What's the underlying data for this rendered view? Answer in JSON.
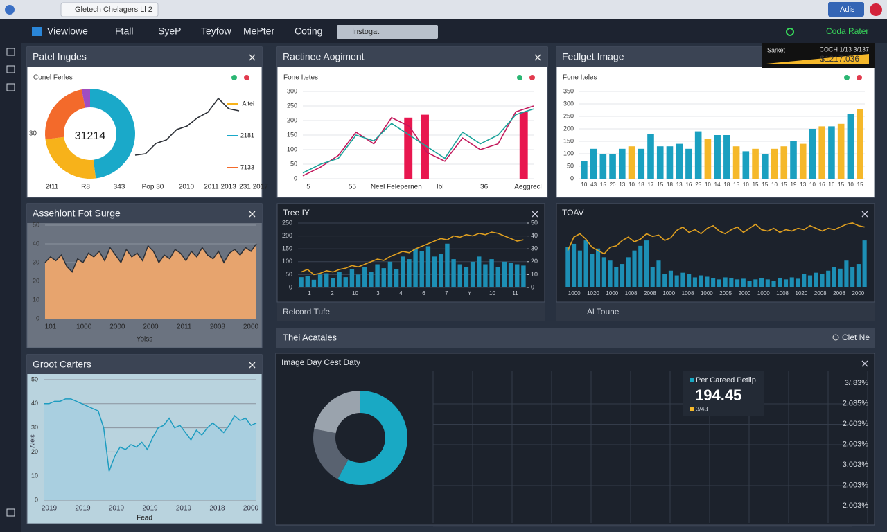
{
  "browser": {
    "tab_title": "Gletech Chelagers Ll 2",
    "account": "Adis"
  },
  "toolbar": {
    "items": [
      "Viewlowe",
      "Ftall",
      "SyeP",
      "Teyfow",
      "MePter",
      "Coting"
    ],
    "search": "Instogat",
    "status": "Coda Rater"
  },
  "ticker": {
    "label": "Sarket",
    "code": "COCH 1/13 3/137",
    "value": "$1217.036"
  },
  "panels": [
    {
      "title": "Patel Ingdes",
      "subtitle": "Conel Ferles",
      "x_labels": [
        "2t11",
        "R8",
        "343",
        "Pop 30",
        "2010",
        "2011 2013",
        "231 2017"
      ],
      "charts": [
        {
          "type": "donut",
          "center_label": "31214",
          "side_label": "30",
          "values": [
            48,
            25,
            24,
            3
          ],
          "colors": [
            "#1aa9c9",
            "#f7b21a",
            "#f36a2b",
            "#a04dc0"
          ]
        },
        {
          "type": "line",
          "ylim": [
            0,
            100
          ],
          "series": [
            {
              "color": "#2b2f36",
              "values": [
                8,
                10,
                25,
                30,
                45,
                50,
                62,
                70,
                90,
                75,
                72
              ]
            }
          ],
          "legend": [
            {
              "label": "Aitei",
              "color": "#f7b21a"
            },
            {
              "label": "2181",
              "color": "#1aa9c9"
            },
            {
              "label": "7133",
              "color": "#f36a2b"
            }
          ]
        }
      ]
    },
    {
      "title": "Ractinee Aogiment",
      "subtitle": "Fone Itetes",
      "x_labels": [
        "5",
        "55",
        "Neel Felepernen",
        "Ibl",
        "36",
        "Aeggrecl"
      ],
      "charts": [
        {
          "type": "line",
          "ylim": [
            0,
            300
          ],
          "yticks": [
            0,
            50,
            100,
            150,
            200,
            250,
            300
          ],
          "grid": true,
          "series": [
            {
              "kind": "bar",
              "color": "#e8174f",
              "values": [
                null,
                null,
                null,
                null,
                null,
                null,
                210,
                220,
                null,
                null,
                null,
                null,
                null,
                230
              ]
            },
            {
              "color": "#c2185b",
              "values": [
                10,
                40,
                80,
                160,
                120,
                210,
                180,
                90,
                60,
                140,
                100,
                120,
                230,
                250
              ]
            },
            {
              "color": "#1aa39a",
              "values": [
                20,
                50,
                70,
                150,
                130,
                190,
                150,
                110,
                70,
                160,
                120,
                150,
                220,
                240
              ]
            }
          ]
        }
      ]
    },
    {
      "title": "Fedlget Image",
      "subtitle": "Fone Iteles",
      "charts": [
        {
          "type": "bar",
          "ylim": [
            0,
            350
          ],
          "yticks": [
            0,
            50,
            100,
            150,
            200,
            250,
            300,
            350
          ],
          "grid": true,
          "categories": [
            "10",
            "43",
            "15",
            "20",
            "13",
            "10",
            "18",
            "17",
            "15",
            "18",
            "13",
            "16",
            "25",
            "10",
            "14",
            "18",
            "15",
            "10",
            "15",
            "15",
            "10",
            "15",
            "19",
            "13",
            "10",
            "16",
            "16",
            "15",
            "10",
            "15"
          ],
          "series": [
            {
              "values": [
                70,
                120,
                100,
                100,
                120,
                130,
                120,
                180,
                130,
                130,
                140,
                120,
                190,
                160,
                175,
                175,
                130,
                110,
                120,
                100,
                120,
                130,
                150,
                140,
                200,
                210,
                210,
                220,
                260,
                280
              ],
              "colors": [
                "#1aa0c0",
                "#1aa0c0",
                "#1aa0c0",
                "#1aa0c0",
                "#1aa0c0",
                "#f5b82a",
                "#1aa0c0",
                "#1aa0c0",
                "#1aa0c0",
                "#1aa0c0",
                "#1aa0c0",
                "#1aa0c0",
                "#1aa0c0",
                "#f5b82a",
                "#1aa0c0",
                "#1aa0c0",
                "#f5b82a",
                "#1aa0c0",
                "#f5b82a",
                "#1aa0c0",
                "#f5b82a",
                "#f5b82a",
                "#1aa0c0",
                "#f5b82a",
                "#1aa0c0",
                "#f5b82a",
                "#1aa0c0",
                "#f5b82a",
                "#1aa0c0",
                "#f5b82a"
              ]
            }
          ]
        }
      ]
    },
    {
      "title": "Assehlont Fot Surge",
      "x_labels": [
        "101",
        "1000",
        "2000",
        "2000",
        "2011",
        "2008",
        "2000"
      ],
      "x_title": "Yoiss",
      "charts": [
        {
          "type": "area",
          "ylim": [
            0,
            50
          ],
          "yticks": [
            0,
            10,
            20,
            30,
            40,
            50
          ],
          "grid": true,
          "series": [
            {
              "color": "#e7a46e",
              "line_color": "#2b2f36",
              "values": [
                30,
                33,
                31,
                34,
                28,
                25,
                32,
                30,
                35,
                33,
                36,
                31,
                38,
                34,
                30,
                37,
                33,
                35,
                31,
                39,
                36,
                30,
                34,
                32,
                37,
                35,
                31,
                36,
                33,
                38,
                34,
                32,
                36,
                30,
                35,
                37,
                34,
                38,
                36,
                40
              ]
            }
          ]
        }
      ]
    },
    {
      "title": "Tree IY",
      "caption": "Relcord Tufe",
      "charts": [
        {
          "type": "bar",
          "ylim": [
            0,
            250
          ],
          "yticks": [
            0,
            50,
            100,
            150,
            200,
            250
          ],
          "y2lim": [
            0,
            50
          ],
          "y2ticks": [
            0,
            10,
            20,
            30,
            40,
            50
          ],
          "grid": true,
          "categories": [
            "1",
            "2",
            "10",
            "3",
            "4",
            "6",
            "7",
            "Y",
            "10",
            "11"
          ],
          "series": [
            {
              "color": "#1d8fb5",
              "values": [
                40,
                45,
                30,
                50,
                55,
                35,
                60,
                40,
                70,
                50,
                80,
                60,
                90,
                75,
                100,
                70,
                120,
                110,
                150,
                140,
                160,
                120,
                130,
                170,
                110,
                90,
                80,
                100,
                120,
                90,
                110,
                80,
                100,
                95,
                90,
                85
              ]
            },
            {
              "kind": "line",
              "axis": "y2",
              "color": "#e0a020",
              "values": [
                12,
                14,
                10,
                11,
                13,
                12,
                14,
                15,
                17,
                16,
                18,
                20,
                22,
                21,
                24,
                26,
                28,
                27,
                30,
                32,
                34,
                36,
                38,
                37,
                40,
                39,
                41,
                40,
                42,
                41,
                43,
                42,
                40,
                38,
                36,
                37
              ]
            }
          ]
        }
      ]
    },
    {
      "title": "TOAV",
      "caption": "Al Toune",
      "charts": [
        {
          "type": "bar",
          "ylim": [
            0,
            100
          ],
          "grid": true,
          "categories": [
            "1000",
            "1020",
            "1000",
            "1008",
            "2008",
            "1000",
            "1008",
            "1000",
            "2005",
            "2000",
            "1000",
            "1008",
            "1020",
            "2008",
            "2008",
            "2000"
          ],
          "series": [
            {
              "color": "#1d8fb5",
              "values": [
                60,
                65,
                55,
                70,
                50,
                58,
                45,
                40,
                30,
                35,
                45,
                55,
                62,
                70,
                30,
                40,
                20,
                25,
                18,
                22,
                20,
                15,
                18,
                16,
                14,
                12,
                15,
                14,
                12,
                13,
                10,
                12,
                14,
                12,
                10,
                14,
                12,
                15,
                13,
                20,
                18,
                22,
                20,
                25,
                30,
                28,
                40,
                30,
                35,
                70
              ]
            },
            {
              "kind": "line",
              "color": "#e0a020",
              "values": [
                55,
                75,
                80,
                72,
                60,
                55,
                50,
                60,
                62,
                70,
                75,
                68,
                72,
                80,
                76,
                78,
                70,
                74,
                85,
                90,
                82,
                86,
                80,
                88,
                92,
                84,
                80,
                86,
                90,
                82,
                88,
                94,
                86,
                84,
                88,
                82,
                86,
                84,
                88,
                86,
                92,
                88,
                84,
                88,
                86,
                90,
                94,
                96,
                92,
                90
              ]
            }
          ]
        }
      ]
    },
    {
      "title": "Groot Carters",
      "x_labels": [
        "2019",
        "2019",
        "2019",
        "2019",
        "2019",
        "2018",
        "2000"
      ],
      "x_title": "Fead",
      "y_title": "Aleis",
      "charts": [
        {
          "type": "area",
          "ylim": [
            0,
            50
          ],
          "yticks": [
            0,
            10,
            20,
            30,
            40,
            50
          ],
          "grid": true,
          "series": [
            {
              "color": "#a9cfe0",
              "line_color": "#1d9cc0",
              "values": [
                40,
                40,
                41,
                41,
                42,
                42,
                41,
                40,
                39,
                38,
                37,
                30,
                12,
                18,
                22,
                21,
                23,
                22,
                24,
                21,
                26,
                30,
                31,
                34,
                30,
                31,
                28,
                25,
                29,
                27,
                30,
                32,
                30,
                28,
                31,
                35,
                33,
                34,
                31,
                32
              ]
            }
          ]
        }
      ]
    },
    {
      "title": "Image Day Cest Daty",
      "section": "Thei Acatales",
      "search": "Clet Ne",
      "card": {
        "title": "Per Careed Petlip",
        "value": "194.45",
        "sub": "3/43"
      },
      "axis_labels": [
        "3/.83%",
        "2.085%",
        "2.603%",
        "2.003%",
        "3.003%",
        "2.003%",
        "2.003%"
      ],
      "charts": [
        {
          "type": "donut",
          "values": [
            58,
            20,
            22
          ],
          "colors": [
            "#19a9c4",
            "#596270",
            "#9aa3ad"
          ]
        }
      ]
    }
  ]
}
